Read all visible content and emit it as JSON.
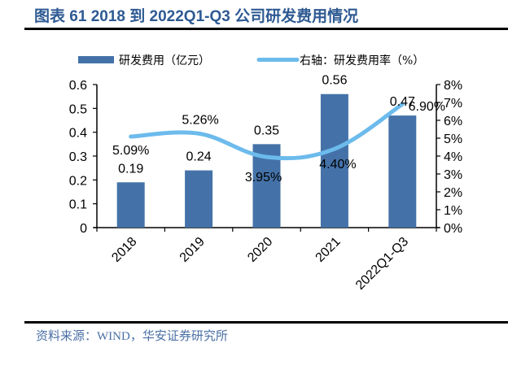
{
  "title": "图表 61 2018 到 2022Q1-Q3 公司研发费用情况",
  "source": "资料来源：WIND，华安证券研究所",
  "chart_data": {
    "type": "bar+line",
    "title": "图表 61 2018 到 2022Q1-Q3 公司研发费用情况",
    "categories": [
      "2018",
      "2019",
      "2020",
      "2021",
      "2022Q1-Q3"
    ],
    "series": [
      {
        "name": "研发费用（亿元）",
        "type": "bar",
        "axis": "left",
        "color": "#4472a8",
        "values": [
          0.19,
          0.24,
          0.35,
          0.56,
          0.47
        ],
        "labels": [
          "0.19",
          "0.24",
          "0.35",
          "0.56",
          "0.47"
        ]
      },
      {
        "name": "右轴：研发费用率（%）",
        "type": "line",
        "axis": "right",
        "color": "#6cbbec",
        "values": [
          5.09,
          5.26,
          3.95,
          4.4,
          6.9
        ],
        "labels": [
          "5.09%",
          "5.26%",
          "3.95%",
          "4.40%",
          "6.90%"
        ]
      }
    ],
    "left_axis": {
      "min": 0,
      "max": 0.6,
      "ticks": [
        "0",
        "0.1",
        "0.2",
        "0.3",
        "0.4",
        "0.5",
        "0.6"
      ]
    },
    "right_axis": {
      "min": 0,
      "max": 8,
      "ticks": [
        "0%",
        "1%",
        "2%",
        "3%",
        "4%",
        "5%",
        "6%",
        "7%",
        "8%"
      ]
    },
    "legend": {
      "position": "top",
      "entries": [
        "研发费用（亿元）",
        "右轴：研发费用率（%）"
      ]
    },
    "grid": false,
    "xlabel": "",
    "ylabel": ""
  }
}
